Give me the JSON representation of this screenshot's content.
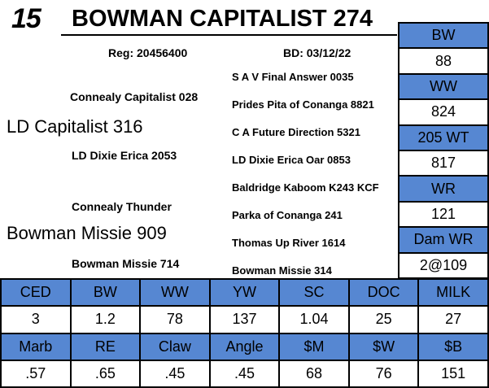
{
  "colors": {
    "accent_blue": "#5687D2",
    "border_black": "#000000",
    "text": "#000000",
    "background": "#FFFFFF"
  },
  "header": {
    "lot_number": "15",
    "title": "BOWMAN CAPITALIST 274",
    "reg": "Reg: 20456400",
    "bd": "BD: 03/12/22"
  },
  "pedigree": {
    "sire": "LD Capitalist 316",
    "sire_sire": "Connealy Capitalist 028",
    "sire_dam": "LD Dixie Erica 2053",
    "dam": "Bowman Missie 909",
    "dam_sire": "Connealy Thunder",
    "dam_dam": "Bowman Missie 714",
    "gen3": [
      "S A V Final Answer 0035",
      "Prides Pita of Conanga 8821",
      "C A Future Direction 5321",
      "LD Dixie Erica Oar 0853",
      "Baldridge Kaboom K243 KCF",
      "Parka of Conanga 241",
      "Thomas Up River 1614",
      "Bowman Missie 314"
    ]
  },
  "stats": {
    "rows": [
      {
        "label": "BW",
        "value": "88"
      },
      {
        "label": "WW",
        "value": "824"
      },
      {
        "label": "205 WT",
        "value": "817"
      },
      {
        "label": "WR",
        "value": "121"
      },
      {
        "label": "Dam WR",
        "value": "2@109"
      }
    ]
  },
  "epd": {
    "header_row_1": [
      "CED",
      "BW",
      "WW",
      "YW",
      "SC",
      "DOC",
      "MILK"
    ],
    "value_row_1": [
      "3",
      "1.2",
      "78",
      "137",
      "1.04",
      "25",
      "27"
    ],
    "header_row_2": [
      "Marb",
      "RE",
      "Claw",
      "Angle",
      "$M",
      "$W",
      "$B"
    ],
    "value_row_2": [
      ".57",
      ".65",
      ".45",
      ".45",
      "68",
      "76",
      "151"
    ]
  }
}
